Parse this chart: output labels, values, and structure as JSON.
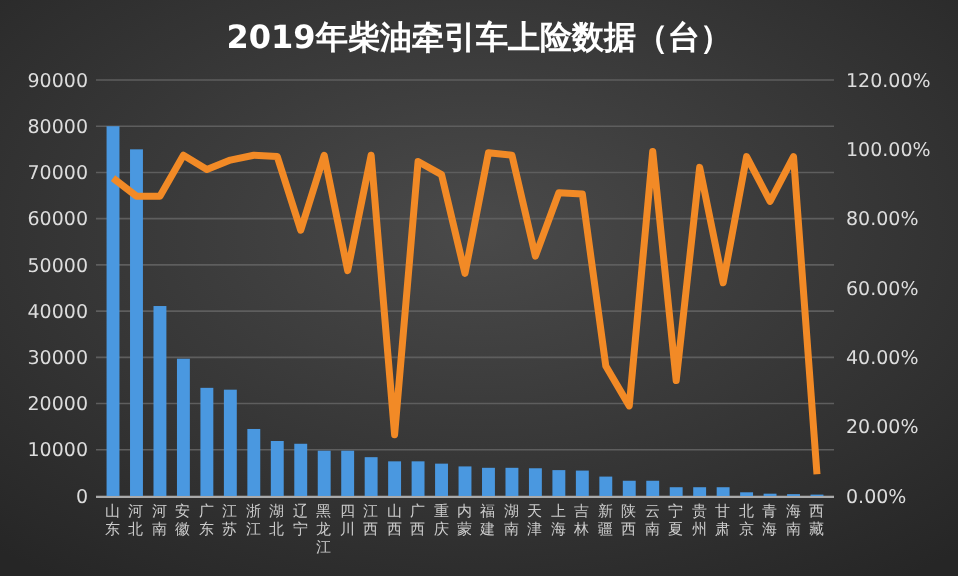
{
  "chart_data": {
    "type": "bar",
    "title": "2019年柴油牵引车上险数据（台）",
    "categories": [
      "山东",
      "河北",
      "河南",
      "安徽",
      "广东",
      "江苏",
      "浙江",
      "湖北",
      "辽宁",
      "黑龙江",
      "四川",
      "江西",
      "山西",
      "广西",
      "重庆",
      "内蒙",
      "福建",
      "湖南",
      "天津",
      "上海",
      "吉林",
      "新疆",
      "陕西",
      "云南",
      "宁夏",
      "贵州",
      "甘肃",
      "北京",
      "青海",
      "海南",
      "西藏"
    ],
    "series": [
      {
        "color": "#4a98e0",
        "values": [
          80000,
          75000,
          41100,
          29700,
          23400,
          23000,
          14500,
          11900,
          11300,
          9800,
          9800,
          8400,
          7500,
          7500,
          7000,
          6400,
          6100,
          6100,
          6000,
          5600,
          5500,
          4200,
          3300,
          3300,
          1900,
          1900,
          1900,
          800,
          500,
          400,
          300
        ]
      },
      {
        "type": "line",
        "axis": "y2",
        "color": "#f28a26",
        "values": [
          91.7,
          86.5,
          86.5,
          98.3,
          94.2,
          96.9,
          98.3,
          97.9,
          76.7,
          98.3,
          65,
          98.3,
          17.7,
          96.5,
          92.7,
          64.2,
          99,
          98.3,
          69.2,
          87.5,
          87.1,
          37.5,
          26,
          99.4,
          33.3,
          94.8,
          61.5,
          97.9,
          85,
          97.9,
          6.3
        ]
      }
    ],
    "ylim": [
      0,
      90000
    ],
    "yticks": [
      0,
      10000,
      20000,
      30000,
      40000,
      50000,
      60000,
      70000,
      80000,
      90000
    ],
    "y2lim": [
      0,
      120
    ],
    "y2ticks": [
      {
        "value": 0,
        "label": "0.00%"
      },
      {
        "value": 20,
        "label": "20.00%"
      },
      {
        "value": 40,
        "label": "40.00%"
      },
      {
        "value": 60,
        "label": "60.00%"
      },
      {
        "value": 80,
        "label": "80.00%"
      },
      {
        "value": 100,
        "label": "100.00%"
      },
      {
        "value": 120,
        "label": "120.00%"
      }
    ],
    "grid": "y"
  }
}
